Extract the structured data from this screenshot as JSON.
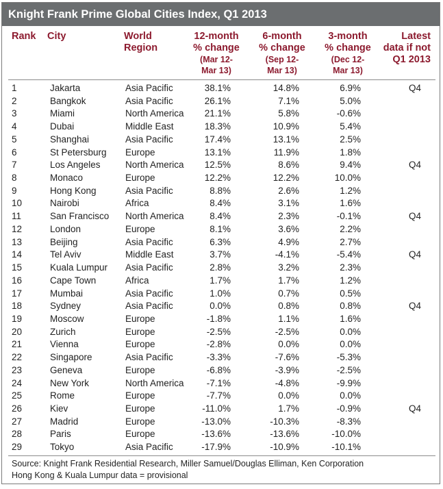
{
  "title": "Knight Frank Prime Global Cities Index, Q1 2013",
  "headers": {
    "rank": "Rank",
    "city": "City",
    "region_l1": "World",
    "region_l2": "Region",
    "m12_l1": "12-month",
    "m12_l2": "% change",
    "m12_sub1": "(Mar 12-",
    "m12_sub2": "Mar 13)",
    "m6_l1": "6-month",
    "m6_l2": "% change",
    "m6_sub1": "(Sep 12-",
    "m6_sub2": "Mar 13)",
    "m3_l1": "3-month",
    "m3_l2": "% change",
    "m3_sub1": "(Dec 12-",
    "m3_sub2": "Mar 13)",
    "latest_l1": "Latest",
    "latest_l2": "data if not",
    "latest_l3": "Q1 2013"
  },
  "chart_data": {
    "type": "table",
    "title": "Knight Frank Prime Global Cities Index, Q1 2013",
    "columns": [
      "Rank",
      "City",
      "World Region",
      "12-month % change (Mar 12-Mar 13)",
      "6-month % change (Sep 12-Mar 13)",
      "3-month % change (Dec 12-Mar 13)",
      "Latest data if not Q1 2013"
    ],
    "rows": [
      [
        "1",
        "Jakarta",
        "Asia Pacific",
        "38.1%",
        "14.8%",
        "6.9%",
        "Q4"
      ],
      [
        "2",
        "Bangkok",
        "Asia Pacific",
        "26.1%",
        "7.1%",
        "5.0%",
        ""
      ],
      [
        "3",
        "Miami",
        "North America",
        "21.1%",
        "5.8%",
        "-0.6%",
        ""
      ],
      [
        "4",
        "Dubai",
        "Middle East",
        "18.3%",
        "10.9%",
        "5.4%",
        ""
      ],
      [
        "5",
        "Shanghai",
        "Asia Pacific",
        "17.4%",
        "13.1%",
        "2.5%",
        ""
      ],
      [
        "6",
        "St Petersburg",
        "Europe",
        "13.1%",
        "11.9%",
        "1.8%",
        ""
      ],
      [
        "7",
        "Los Angeles",
        "North America",
        "12.5%",
        "8.6%",
        "9.4%",
        "Q4"
      ],
      [
        "8",
        "Monaco",
        "Europe",
        "12.2%",
        "12.2%",
        "10.0%",
        ""
      ],
      [
        "9",
        "Hong Kong",
        "Asia Pacific",
        "8.8%",
        "2.6%",
        "1.2%",
        ""
      ],
      [
        "10",
        "Nairobi",
        "Africa",
        "8.4%",
        "3.1%",
        "1.6%",
        ""
      ],
      [
        "11",
        "San Francisco",
        "North America",
        "8.4%",
        "2.3%",
        "-0.1%",
        "Q4"
      ],
      [
        "12",
        "London",
        "Europe",
        "8.1%",
        "3.6%",
        "2.2%",
        ""
      ],
      [
        "13",
        "Beijing",
        "Asia Pacific",
        "6.3%",
        "4.9%",
        "2.7%",
        ""
      ],
      [
        "14",
        "Tel Aviv",
        "Middle East",
        "3.7%",
        "-4.1%",
        "-5.4%",
        "Q4"
      ],
      [
        "15",
        "Kuala Lumpur",
        "Asia Pacific",
        "2.8%",
        "3.2%",
        "2.3%",
        ""
      ],
      [
        "16",
        "Cape Town",
        "Africa",
        "1.7%",
        "1.7%",
        "1.2%",
        ""
      ],
      [
        "17",
        "Mumbai",
        "Asia Pacific",
        "1.0%",
        "0.7%",
        "0.5%",
        ""
      ],
      [
        "18",
        "Sydney",
        "Asia Pacific",
        "0.0%",
        "0.8%",
        "0.8%",
        "Q4"
      ],
      [
        "19",
        "Moscow",
        "Europe",
        "-1.8%",
        "1.1%",
        "1.6%",
        ""
      ],
      [
        "20",
        "Zurich",
        "Europe",
        "-2.5%",
        "-2.5%",
        "0.0%",
        ""
      ],
      [
        "21",
        "Vienna",
        "Europe",
        "-2.8%",
        "0.0%",
        "0.0%",
        ""
      ],
      [
        "22",
        "Singapore",
        "Asia Pacific",
        "-3.3%",
        "-7.6%",
        "-5.3%",
        ""
      ],
      [
        "23",
        "Geneva",
        "Europe",
        "-6.8%",
        "-3.9%",
        "-2.5%",
        ""
      ],
      [
        "24",
        "New York",
        "North America",
        "-7.1%",
        "-4.8%",
        "-9.9%",
        ""
      ],
      [
        "25",
        "Rome",
        "Europe",
        "-7.7%",
        "0.0%",
        "0.0%",
        ""
      ],
      [
        "26",
        "Kiev",
        "Europe",
        "-11.0%",
        "1.7%",
        "-0.9%",
        "Q4"
      ],
      [
        "27",
        "Madrid",
        "Europe",
        "-13.0%",
        "-10.3%",
        "-8.3%",
        ""
      ],
      [
        "28",
        "Paris",
        "Europe",
        "-13.6%",
        "-13.6%",
        "-10.0%",
        ""
      ],
      [
        "29",
        "Tokyo",
        "Asia Pacific",
        "-17.9%",
        "-10.9%",
        "-10.1%",
        ""
      ]
    ]
  },
  "footer": {
    "line1": "Source: Knight Frank Residential Research, Miller Samuel/Douglas Elliman, Ken Corporation",
    "line2": "Hong Kong & Kuala Lumpur data = provisional"
  }
}
